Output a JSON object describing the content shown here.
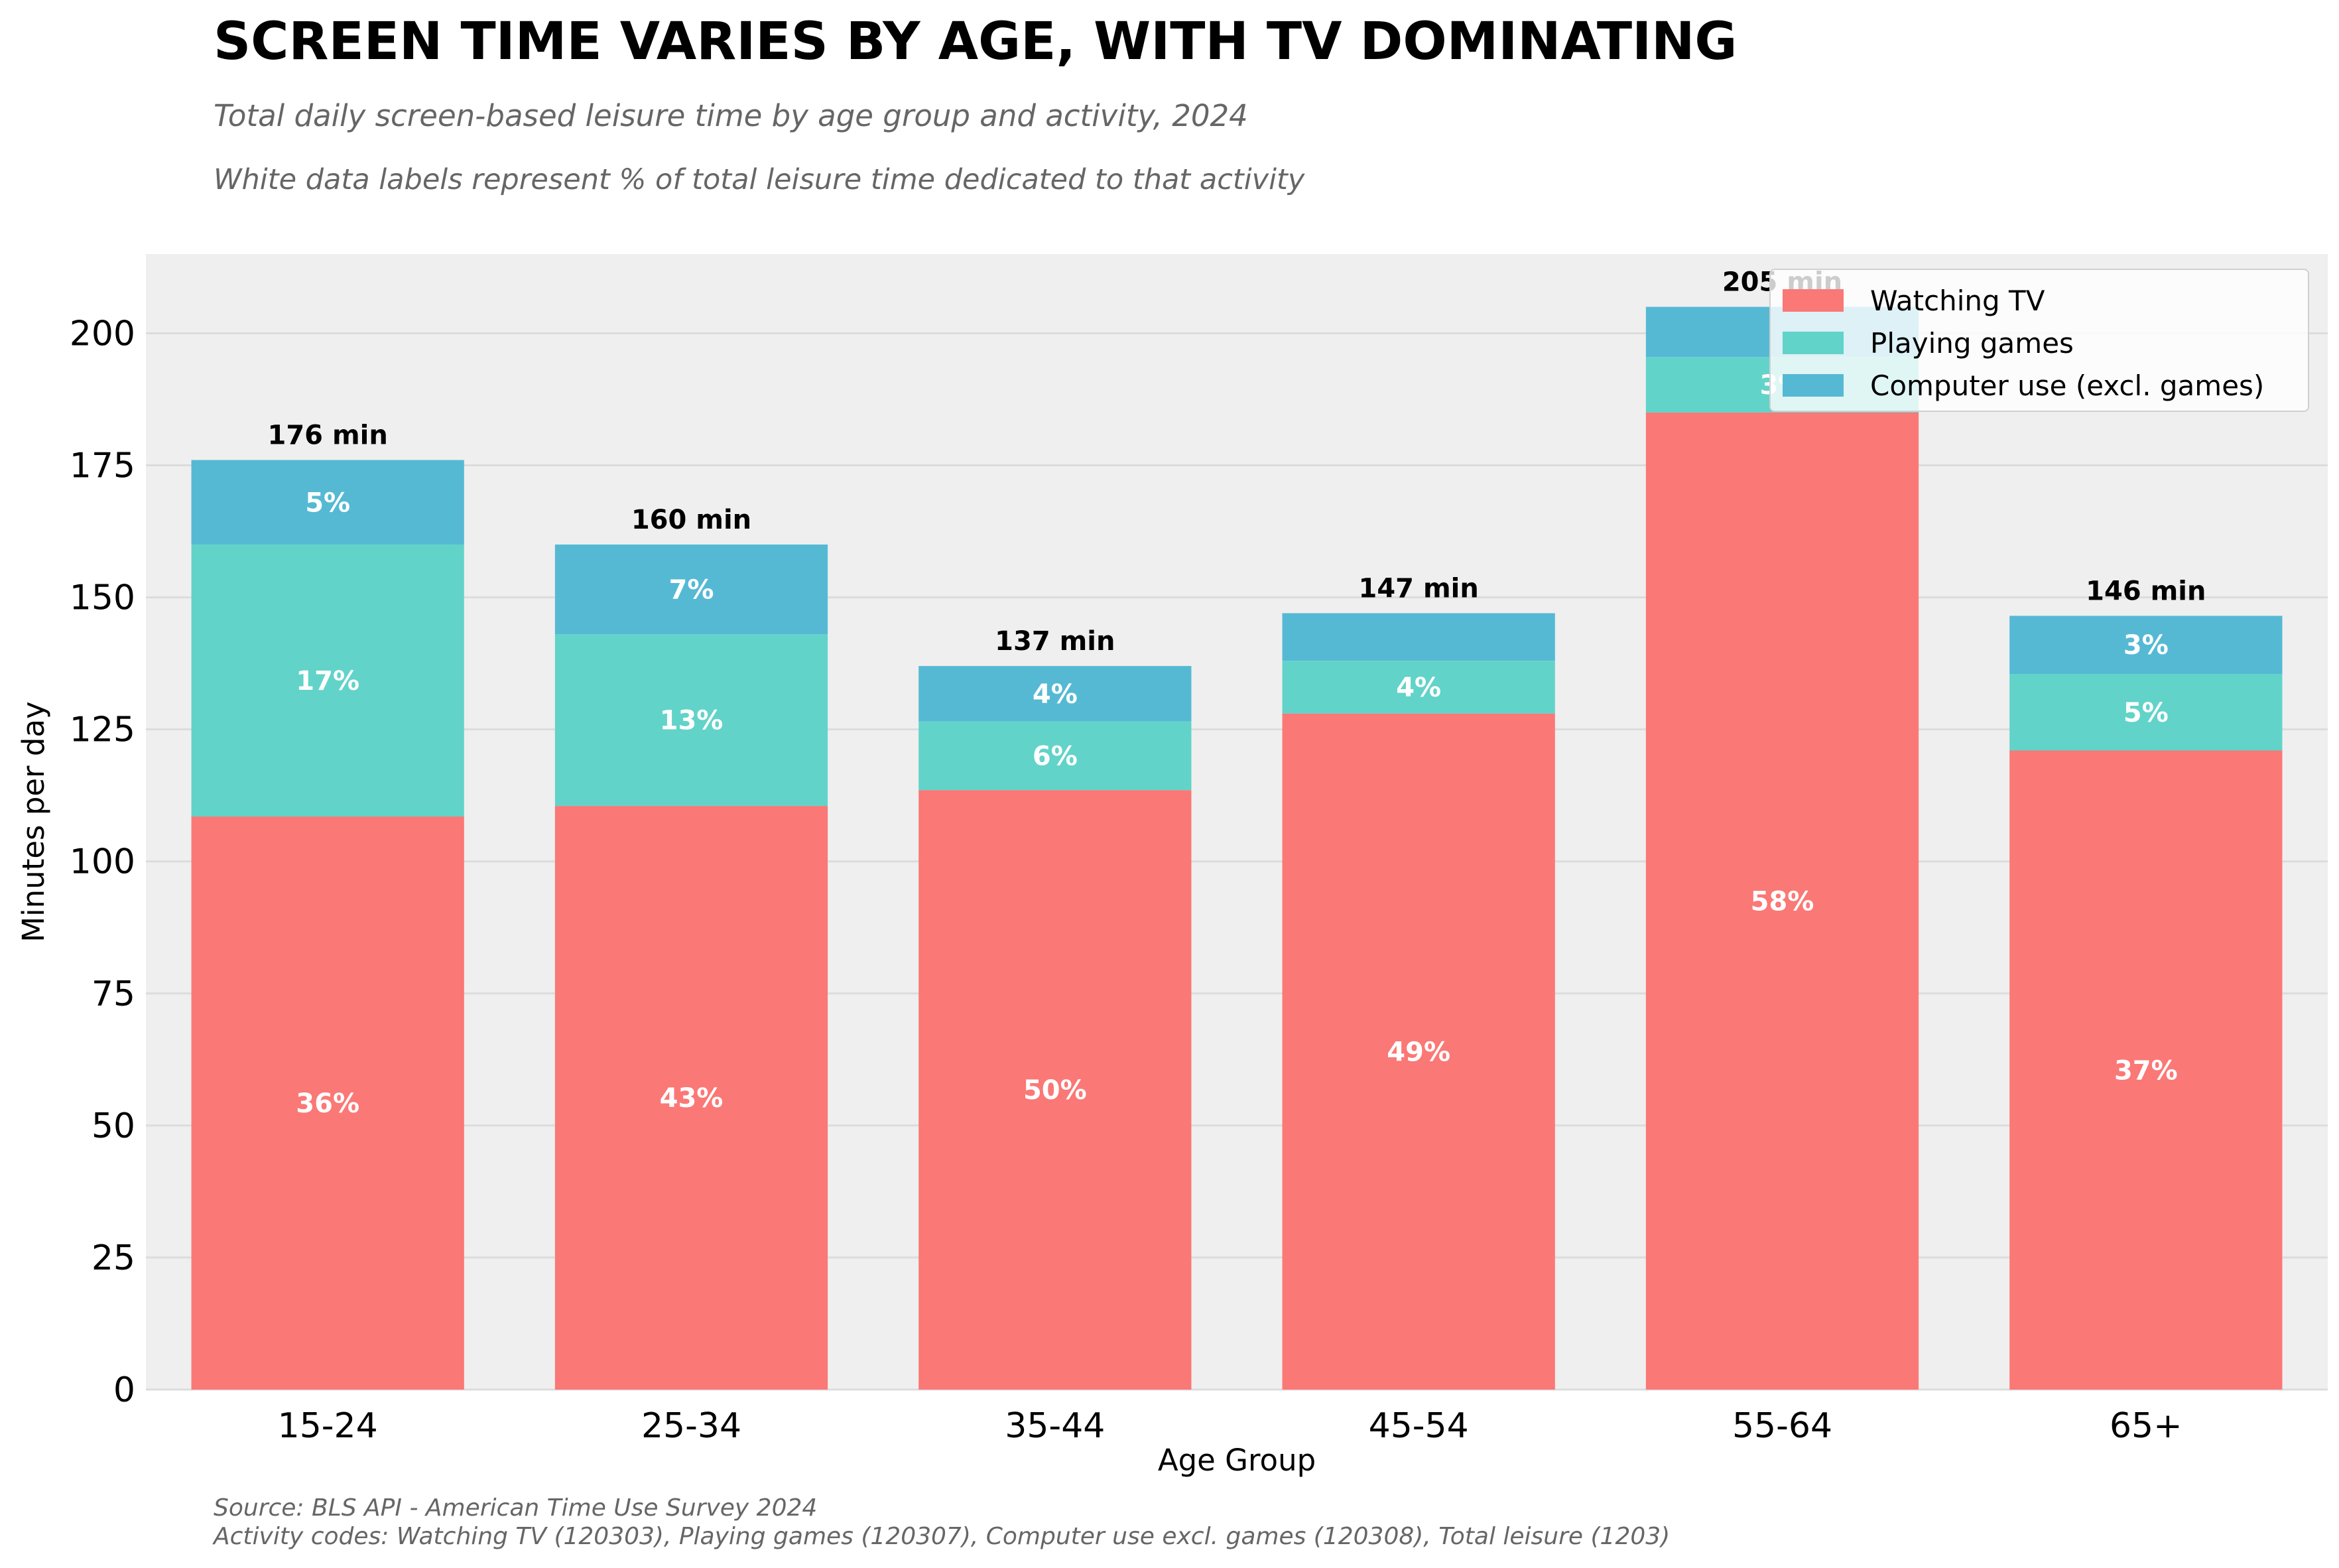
{
  "title": "SCREEN TIME VARIES BY AGE, WITH TV DOMINATING",
  "subtitle": "Total daily screen-based leisure time by age group and activity, 2024",
  "note": "White data labels represent % of total leisure time dedicated to that activity",
  "footer": {
    "source": "Source: BLS API - American Time Use Survey 2024",
    "codes": "Activity codes: Watching TV (120303), Playing games (120307), Computer use excl. games (120308), Total leisure (1203)"
  },
  "chart_data": {
    "type": "bar",
    "stacked": true,
    "categories": [
      "15-24",
      "25-34",
      "35-44",
      "45-54",
      "55-64",
      "65+"
    ],
    "xlabel": "Age Group",
    "ylabel": "Minutes per day",
    "ylim": [
      0,
      215
    ],
    "yticks": [
      0,
      25,
      50,
      75,
      100,
      125,
      150,
      175,
      200
    ],
    "grid": "horizontal",
    "legend_position": "top-right",
    "series": [
      {
        "name": "Watching TV",
        "color": "#fa7876",
        "values": [
          108.5,
          110.5,
          113.5,
          128,
          185,
          121
        ],
        "labels": [
          "36%",
          "43%",
          "50%",
          "49%",
          "58%",
          "37%"
        ]
      },
      {
        "name": "Playing games",
        "color": "#62d3c9",
        "values": [
          51.5,
          32.5,
          13,
          10,
          10.5,
          14.5
        ],
        "labels": [
          "17%",
          "13%",
          "6%",
          "4%",
          "3%",
          "5%"
        ]
      },
      {
        "name": "Computer use (excl. games)",
        "color": "#55b9d4",
        "values": [
          16,
          17,
          10.5,
          9,
          9.5,
          11
        ],
        "labels": [
          "5%",
          "7%",
          "4%",
          "",
          "",
          "3%"
        ]
      }
    ],
    "totals": [
      "176 min",
      "160 min",
      "137 min",
      "147 min",
      "205 min",
      "146 min"
    ]
  }
}
